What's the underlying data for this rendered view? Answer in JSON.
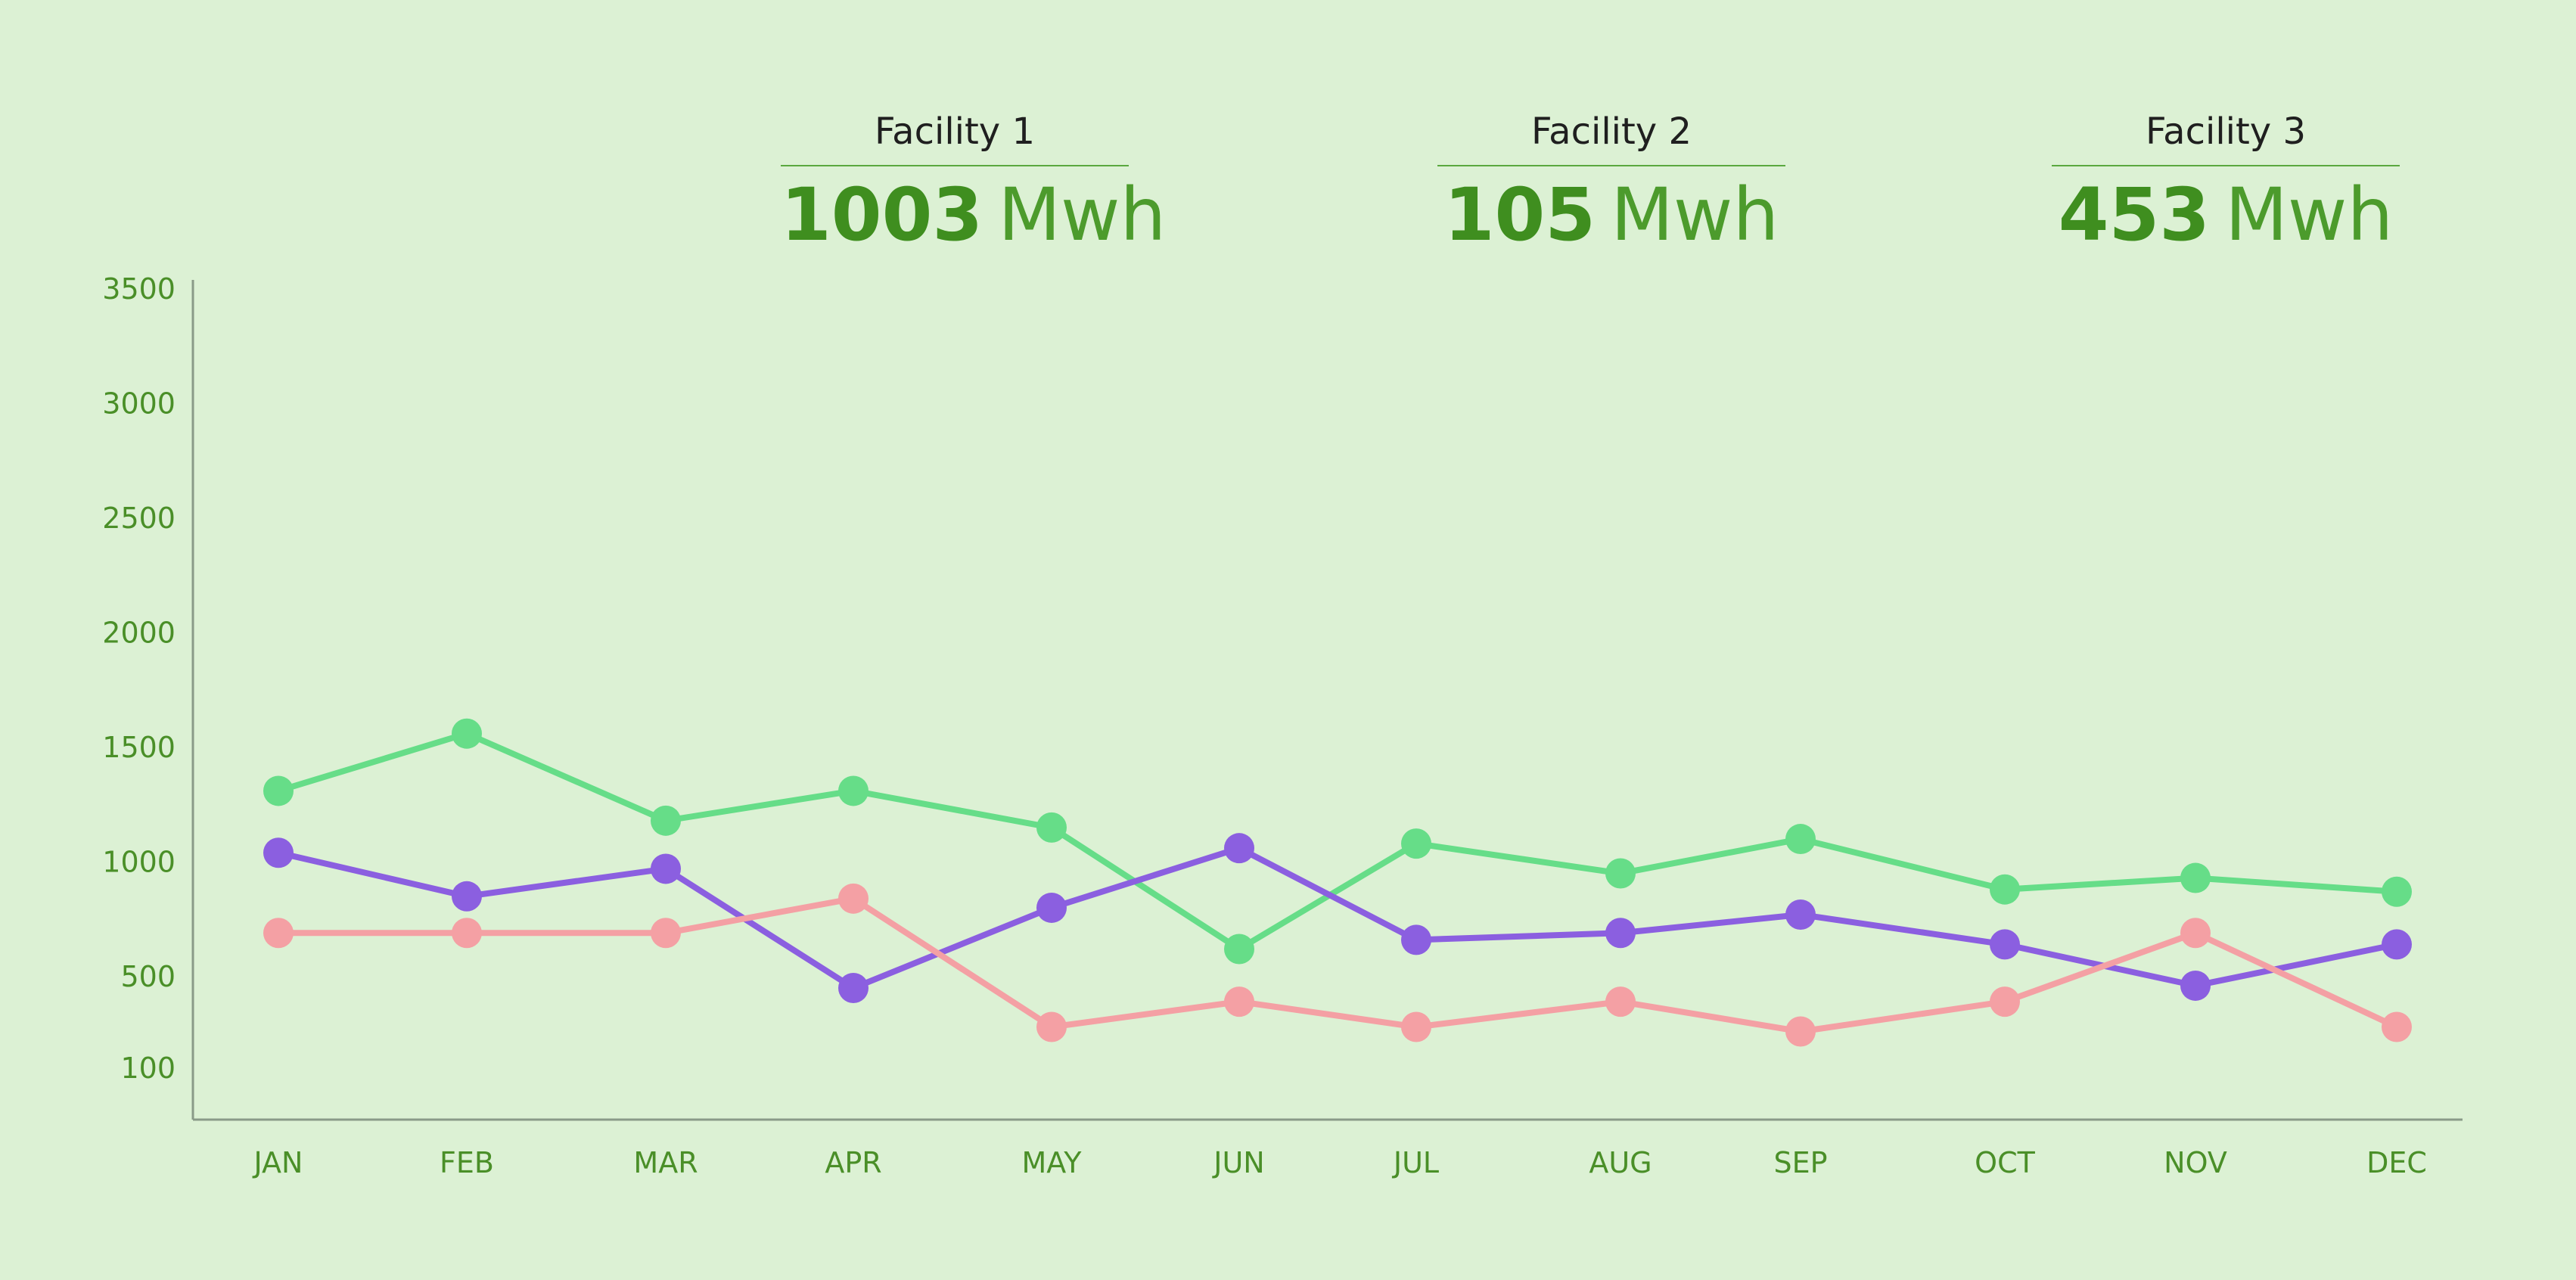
{
  "facilities": [
    {
      "name": "Facility 1",
      "value": "1003",
      "unit": "Mwh"
    },
    {
      "name": "Facility 2",
      "value": "105",
      "unit": "Mwh"
    },
    {
      "name": "Facility 3",
      "value": "453",
      "unit": "Mwh"
    }
  ],
  "colors": {
    "background": "#dcf1d4",
    "accent": "#3f8e1f",
    "series_green": "#66dd88",
    "series_purple": "#8b5fe0",
    "series_pink": "#f4a0a4"
  },
  "chart_data": {
    "type": "line",
    "categories": [
      "JAN",
      "FEB",
      "MAR",
      "APR",
      "MAY",
      "JUN",
      "JUL",
      "AUG",
      "SEP",
      "OCT",
      "NOV",
      "DEC"
    ],
    "y_ticks": [
      "100",
      "500",
      "1000",
      "1500",
      "2000",
      "2500",
      "3000",
      "3500"
    ],
    "grid": false,
    "series": [
      {
        "color": "#66dd88",
        "values": [
          1310,
          1560,
          1180,
          1310,
          1150,
          620,
          1080,
          950,
          1100,
          880,
          930,
          870
        ]
      },
      {
        "color": "#8b5fe0",
        "values": [
          1040,
          850,
          970,
          450,
          800,
          1060,
          660,
          690,
          770,
          640,
          460,
          640
        ]
      },
      {
        "color": "#f4a0a4",
        "values": [
          690,
          690,
          690,
          840,
          280,
          390,
          280,
          390,
          260,
          390,
          690,
          280
        ]
      }
    ]
  }
}
